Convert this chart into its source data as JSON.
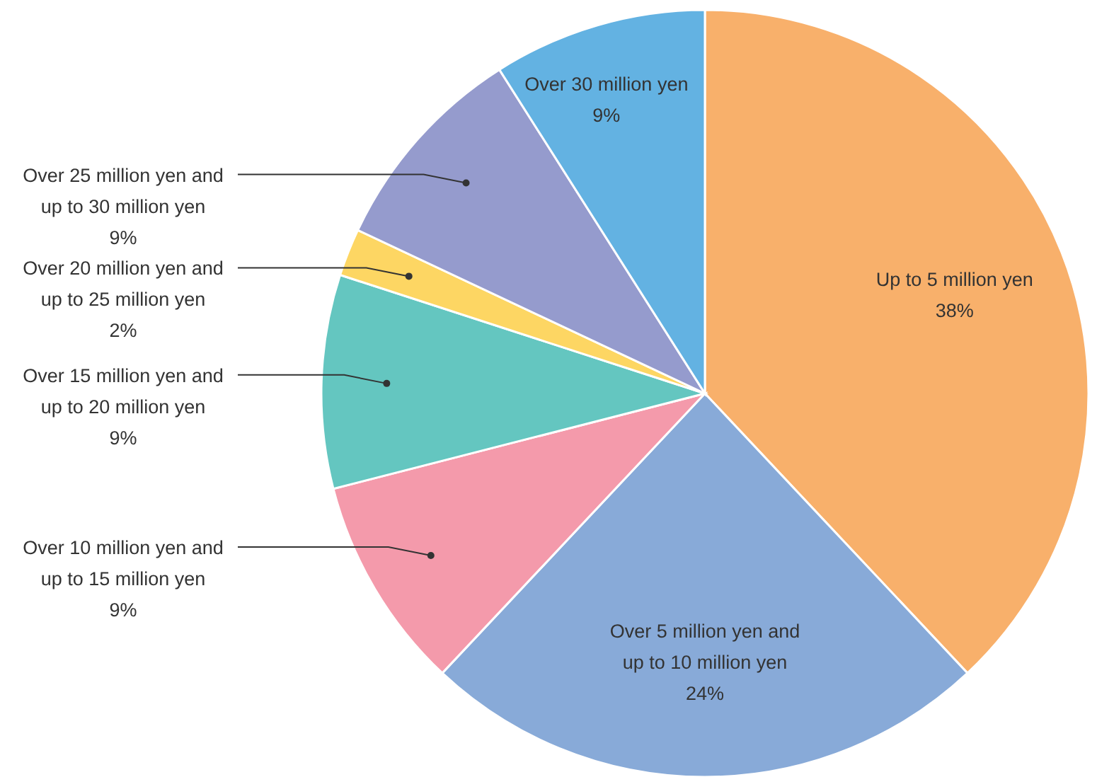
{
  "chart_data": {
    "type": "pie",
    "categories": [
      "Up to 5 million yen",
      "Over 5 million yen and up to 10 million yen",
      "Over 10 million yen and up to 15 million yen",
      "Over 15 million yen and up to 20 million yen",
      "Over 20 million yen and up to 25 million yen",
      "Over 25 million yen and up to 30 million yen",
      "Over 30 million yen"
    ],
    "values": [
      38,
      24,
      9,
      9,
      2,
      9,
      9
    ],
    "value_labels": [
      "38%",
      "24%",
      "9%",
      "9%",
      "2%",
      "9%",
      "9%"
    ],
    "colors": [
      "#f8b06b",
      "#88aad8",
      "#f49aab",
      "#64c6c0",
      "#fdd663",
      "#959bcd",
      "#63b2e2"
    ],
    "legend": false
  }
}
